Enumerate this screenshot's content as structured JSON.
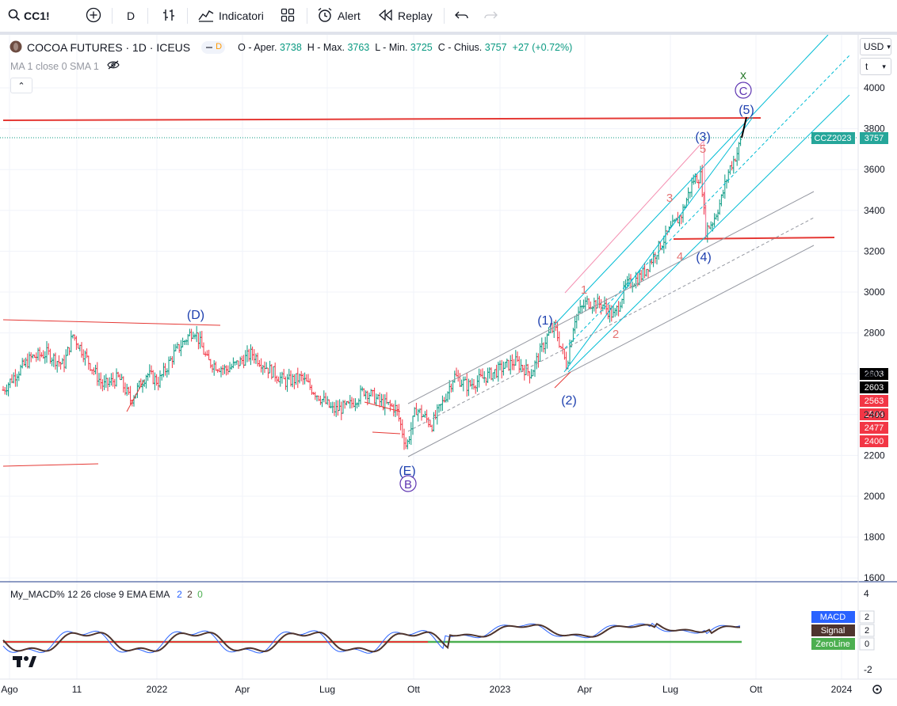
{
  "toolbar": {
    "symbol": "CC1!",
    "interval": "D",
    "indicators_label": "Indicatori",
    "alert_label": "Alert",
    "replay_label": "Replay"
  },
  "legend": {
    "title": "COCOA FUTURES · 1D · ICEUS",
    "badge": "D",
    "open_label": "O - Aper.",
    "open": "3738",
    "high_label": "H - Max.",
    "high": "3763",
    "low_label": "L - Min.",
    "low": "3725",
    "close_label": "C - Chius.",
    "close": "3757",
    "change": "+27 (+0.72%)",
    "ma_label": "MA 1 close 0 SMA 1"
  },
  "axis": {
    "currency": "USD",
    "unit": "t",
    "price_labels": [
      "4000",
      "3800",
      "3600",
      "3400",
      "3200",
      "3000",
      "2800",
      "2600",
      "2400",
      "2200",
      "2000",
      "1800",
      "1600"
    ],
    "macd_labels": [
      "4",
      "-2"
    ],
    "time_labels": [
      "Ago",
      "11",
      "2022",
      "Apr",
      "Lug",
      "Ott",
      "2023",
      "Apr",
      "Lug",
      "Ott",
      "2024"
    ]
  },
  "price_tags": {
    "contract": "CCZ2023",
    "contract_value": "3757",
    "tags": [
      {
        "value": "2603",
        "color": "#000000"
      },
      {
        "value": "2603",
        "color": "#000000"
      },
      {
        "value": "2563",
        "color": "#f23645"
      },
      {
        "value": "2503",
        "color": "#f23645"
      },
      {
        "value": "2477",
        "color": "#f23645"
      },
      {
        "value": "2400",
        "color": "#f23645"
      }
    ]
  },
  "annotations": {
    "wave_blue": [
      "(D)",
      "(E)",
      "(1)",
      "(2)",
      "(3)",
      "(4)",
      "(5)"
    ],
    "wave_circle": [
      "B",
      "C"
    ],
    "wave_red": [
      "1",
      "2",
      "3",
      "4",
      "5"
    ],
    "marker_x": "x"
  },
  "macd": {
    "legend": "My_MACD% 12 26 close 9 EMA EMA",
    "values": [
      "2",
      "2",
      "0"
    ],
    "tags": [
      {
        "label": "MACD",
        "value": "2",
        "color": "#2962ff"
      },
      {
        "label": "Signal",
        "value": "2",
        "color": "#4e342e"
      },
      {
        "label": "ZeroLine",
        "value": "0",
        "color": "#4caf50"
      }
    ]
  },
  "colors": {
    "up": "#089981",
    "down": "#f23645",
    "channel": "#00bcd4",
    "resistance": "#e53935",
    "macd": "#2962ff",
    "signal": "#4e342e",
    "zero": "#4caf50"
  }
}
